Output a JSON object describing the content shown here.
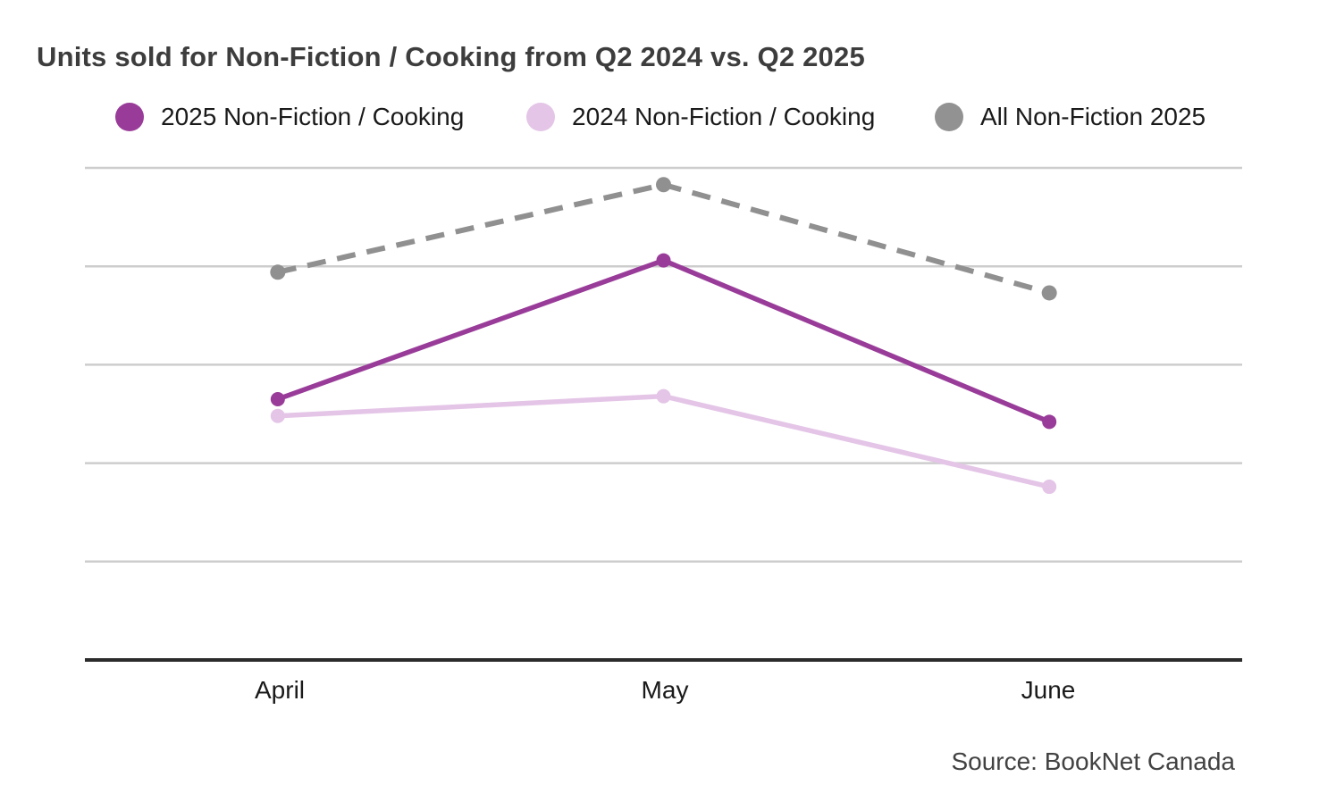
{
  "title": "Units sold for Non-Fiction / Cooking from Q2 2024 vs. Q2 2025",
  "source": "Source: BookNet Canada",
  "legend": {
    "items": [
      {
        "label": "2025 Non-Fiction / Cooking",
        "color": "#993c99"
      },
      {
        "label": "2024 Non-Fiction / Cooking",
        "color": "#e4c5e7"
      },
      {
        "label": "All Non-Fiction 2025",
        "color": "#929292"
      }
    ]
  },
  "colors": {
    "series_2025_cooking": "#993c99",
    "series_2024_cooking": "#e4c5e7",
    "series_all_nonfiction": "#909090",
    "gridline": "#cdcdcd",
    "axis": "#2b2b2b",
    "title_text": "#3d3d3d",
    "label_text": "#1a1a1a",
    "source_text": "#424242",
    "background": "#ffffff"
  },
  "chart_data": {
    "type": "line",
    "title": "Units sold for Non-Fiction / Cooking from Q2 2024 vs. Q2 2025",
    "categories": [
      "April",
      "May",
      "June"
    ],
    "series": [
      {
        "name": "2024 Non-Fiction / Cooking",
        "color": "#e4c5e7",
        "dashed": false,
        "values": [
          2.48,
          2.68,
          1.76
        ]
      },
      {
        "name": "2025 Non-Fiction / Cooking",
        "color": "#993c99",
        "dashed": false,
        "values": [
          2.65,
          4.06,
          2.42
        ]
      },
      {
        "name": "All Non-Fiction 2025",
        "color": "#909090",
        "dashed": true,
        "values": [
          3.94,
          4.83,
          3.73
        ]
      }
    ],
    "xlabel": "",
    "ylabel": "",
    "y_axis": {
      "tick_labels_shown": false,
      "values_unit": "relative gridline units (no numeric y-axis labels are visible; 1.0 = one gridline step above the baseline axis)",
      "gridlines": [
        1,
        2,
        3,
        4,
        5
      ],
      "ylim": [
        0,
        5.5
      ]
    },
    "grid": "horizontal",
    "legend_position": "top",
    "source": "Source: BookNet Canada"
  }
}
